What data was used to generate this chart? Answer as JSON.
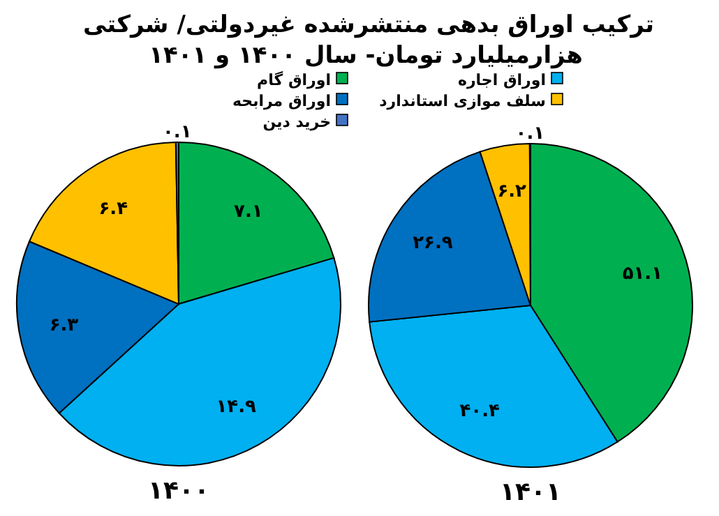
{
  "chart_data": [
    {
      "type": "pie",
      "title": "ترکیب اوراق بدهی منتشرشده غیردولتی/ شرکتی",
      "subtitle": "هزارمیلیارد تومان- سال ۱۴۰۰ و ۱۴۰۱",
      "xlabel": "۱۴۰۰",
      "legend": "top",
      "categories": [
        "اوراق گام",
        "اوراق اجاره",
        "اوراق مرابحه",
        "سلف موازی استاندارد",
        "خرید دین"
      ],
      "values": [
        7.1,
        14.9,
        6.3,
        6.4,
        0.1
      ],
      "value_labels": [
        "۷.۱",
        "۱۴.۹",
        "۶.۳",
        "۶.۴",
        "۰.۱"
      ],
      "colors": [
        "#00b050",
        "#00b0f0",
        "#0070c0",
        "#ffc000",
        "#4472c4"
      ]
    },
    {
      "type": "pie",
      "xlabel": "۱۴۰۱",
      "values": [
        51.1,
        40.4,
        26.9,
        6.2,
        0.1
      ],
      "value_labels": [
        "۵۱.۱",
        "۴۰.۴",
        "۲۶.۹",
        "۶.۲",
        "۰.۱"
      ],
      "colors": [
        "#00b050",
        "#00b0f0",
        "#0070c0",
        "#ffc000",
        "#4472c4"
      ]
    }
  ]
}
